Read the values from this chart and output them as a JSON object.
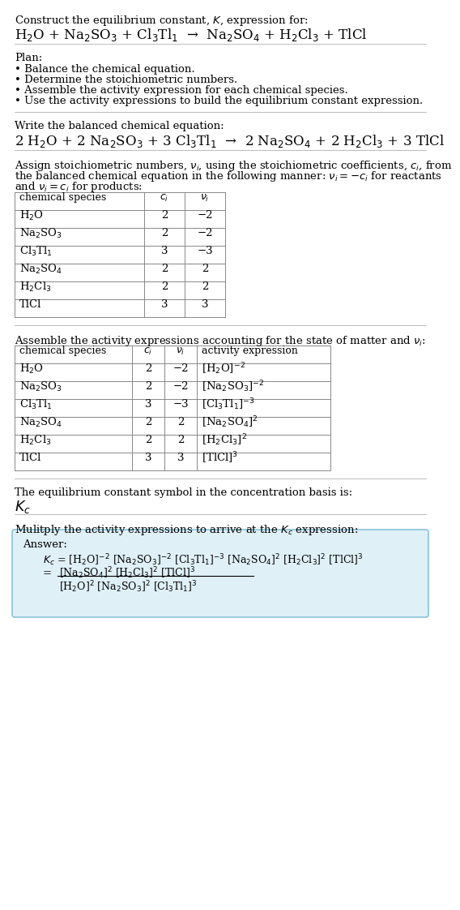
{
  "title_line1": "Construct the equilibrium constant, $K$, expression for:",
  "reaction_unbalanced": "H$_2$O + Na$_2$SO$_3$ + Cl$_3$Tl$_1$  →  Na$_2$SO$_4$ + H$_2$Cl$_3$ + TlCl",
  "plan_header": "Plan:",
  "plan_items": [
    "• Balance the chemical equation.",
    "• Determine the stoichiometric numbers.",
    "• Assemble the activity expression for each chemical species.",
    "• Use the activity expressions to build the equilibrium constant expression."
  ],
  "balanced_header": "Write the balanced chemical equation:",
  "reaction_balanced": "2 H$_2$O + 2 Na$_2$SO$_3$ + 3 Cl$_3$Tl$_1$  →  2 Na$_2$SO$_4$ + 2 H$_2$Cl$_3$ + 3 TlCl",
  "stoich_header_lines": [
    "Assign stoichiometric numbers, $\\nu_i$, using the stoichiometric coefficients, $c_i$, from",
    "the balanced chemical equation in the following manner: $\\nu_i = -c_i$ for reactants",
    "and $\\nu_i = c_i$ for products:"
  ],
  "table1_headers": [
    "chemical species",
    "$c_i$",
    "$\\nu_i$"
  ],
  "table1_data": [
    [
      "H$_2$O",
      "2",
      "−2"
    ],
    [
      "Na$_2$SO$_3$",
      "2",
      "−2"
    ],
    [
      "Cl$_3$Tl$_1$",
      "3",
      "−3"
    ],
    [
      "Na$_2$SO$_4$",
      "2",
      "2"
    ],
    [
      "H$_2$Cl$_3$",
      "2",
      "2"
    ],
    [
      "TlCl",
      "3",
      "3"
    ]
  ],
  "activity_header": "Assemble the activity expressions accounting for the state of matter and $\\nu_i$:",
  "table2_headers": [
    "chemical species",
    "$c_i$",
    "$\\nu_i$",
    "activity expression"
  ],
  "table2_data": [
    [
      "H$_2$O",
      "2",
      "−2",
      "[H$_2$O]$^{-2}$"
    ],
    [
      "Na$_2$SO$_3$",
      "2",
      "−2",
      "[Na$_2$SO$_3$]$^{-2}$"
    ],
    [
      "Cl$_3$Tl$_1$",
      "3",
      "−3",
      "[Cl$_3$Tl$_1$]$^{-3}$"
    ],
    [
      "Na$_2$SO$_4$",
      "2",
      "2",
      "[Na$_2$SO$_4$]$^2$"
    ],
    [
      "H$_2$Cl$_3$",
      "2",
      "2",
      "[H$_2$Cl$_3$]$^2$"
    ],
    [
      "TlCl",
      "3",
      "3",
      "[TlCl]$^3$"
    ]
  ],
  "kc_header": "The equilibrium constant symbol in the concentration basis is:",
  "kc_symbol": "$K_c$",
  "multiply_header": "Mulitply the activity expressions to arrive at the $K_c$ expression:",
  "answer_label": "Answer:",
  "answer_line1": "$K_c$ = [H$_2$O]$^{-2}$ [Na$_2$SO$_3$]$^{-2}$ [Cl$_3$Tl$_1$]$^{-3}$ [Na$_2$SO$_4$]$^2$ [H$_2$Cl$_3$]$^2$ [TlCl]$^3$",
  "answer_eq_sign": "=",
  "answer_numerator": "[Na$_2$SO$_4$]$^2$ [H$_2$Cl$_3$]$^2$ [TlCl]$^3$",
  "answer_denominator": "[H$_2$O]$^2$ [Na$_2$SO$_3$]$^2$ [Cl$_3$Tl$_1$]$^3$",
  "bg_color": "#ffffff",
  "text_color": "#000000",
  "answer_box_color": "#dff0f7",
  "answer_box_border": "#89c4d8",
  "font_size": 9.5,
  "section_separator_color": "#bbbbbb"
}
